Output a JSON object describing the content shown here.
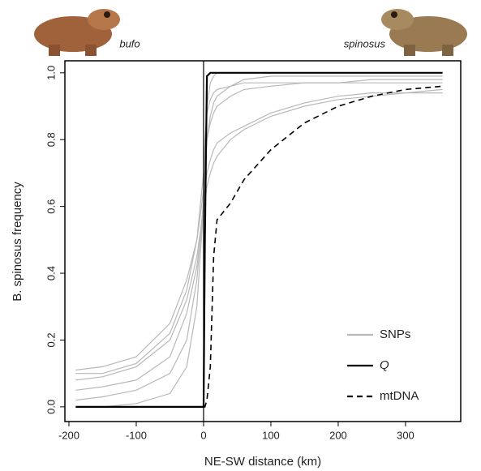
{
  "chart_data": {
    "type": "line",
    "xlabel": "NE-SW distance (km)",
    "ylabel": "B. spinosus frequency",
    "annotations": [
      "bufo",
      "spinosus"
    ],
    "x": [
      -190,
      -150,
      -100,
      -50,
      -25,
      -10,
      -5,
      0,
      2,
      5,
      10,
      15,
      20,
      40,
      60,
      100,
      150,
      200,
      250,
      300,
      355
    ],
    "xlim": [
      -206,
      382
    ],
    "xticks": [
      -200,
      -100,
      0,
      100,
      200,
      300
    ],
    "ylim": [
      -0.044,
      1.036
    ],
    "yticks": [
      {
        "value": 0,
        "label": "0.0"
      },
      0.2,
      0.4,
      0.6,
      0.8,
      {
        "value": 1,
        "label": "1.0"
      }
    ],
    "legend": "bottom-right",
    "series": [
      {
        "name": "SNPs",
        "color": "#b8b8b8",
        "style": "solid",
        "lines": [
          [
            0.11,
            0.12,
            0.15,
            0.25,
            0.38,
            0.5,
            0.57,
            0.65,
            0.72,
            0.8,
            0.85,
            0.88,
            0.9,
            0.93,
            0.95,
            0.96,
            0.97,
            0.97,
            0.98,
            0.98,
            0.98
          ],
          [
            0,
            0,
            0.01,
            0.04,
            0.12,
            0.3,
            0.45,
            0.6,
            0.75,
            0.9,
            0.97,
            0.99,
            1,
            1,
            1,
            1,
            1,
            1,
            1,
            1,
            1
          ],
          [
            0.08,
            0.09,
            0.12,
            0.2,
            0.32,
            0.45,
            0.52,
            0.6,
            0.65,
            0.7,
            0.74,
            0.77,
            0.79,
            0.82,
            0.84,
            0.88,
            0.91,
            0.93,
            0.94,
            0.94,
            0.94
          ],
          [
            0.05,
            0.06,
            0.08,
            0.15,
            0.28,
            0.42,
            0.5,
            0.58,
            0.62,
            0.66,
            0.7,
            0.73,
            0.75,
            0.8,
            0.83,
            0.87,
            0.9,
            0.92,
            0.93,
            0.94,
            0.95
          ],
          [
            0.1,
            0.1,
            0.13,
            0.22,
            0.35,
            0.5,
            0.6,
            0.7,
            0.8,
            0.88,
            0.92,
            0.94,
            0.95,
            0.96,
            0.97,
            0.97,
            0.97,
            0.97,
            0.97,
            0.97,
            0.97
          ],
          [
            0.02,
            0.03,
            0.05,
            0.1,
            0.2,
            0.38,
            0.5,
            0.62,
            0.7,
            0.8,
            0.87,
            0.91,
            0.93,
            0.96,
            0.98,
            0.99,
            0.99,
            0.99,
            0.99,
            0.99,
            0.99
          ]
        ]
      },
      {
        "name": "Q",
        "color": "#000000",
        "style": "solid",
        "values": [
          0,
          0,
          0,
          0,
          0,
          0,
          0,
          0,
          0.5,
          0.99,
          1,
          1,
          1,
          1,
          1,
          1,
          1,
          1,
          1,
          1,
          1
        ]
      },
      {
        "name": "mtDNA",
        "color": "#000000",
        "style": "dashed",
        "values": [
          null,
          null,
          null,
          null,
          null,
          null,
          null,
          0,
          0,
          0.02,
          0.12,
          0.45,
          0.56,
          0.61,
          0.68,
          0.77,
          0.85,
          0.9,
          0.93,
          0.95,
          0.96
        ]
      }
    ]
  }
}
